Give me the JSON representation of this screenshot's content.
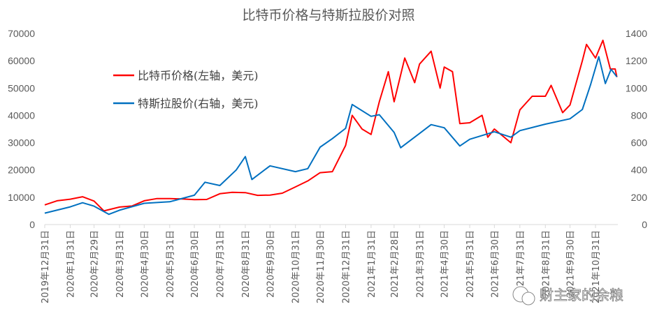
{
  "chart_data": {
    "type": "line",
    "title": "比特币价格与特斯拉股价对照",
    "y_left": {
      "min": 0,
      "max": 70000,
      "ticks": [
        0,
        10000,
        20000,
        30000,
        40000,
        50000,
        60000,
        70000
      ]
    },
    "y_right": {
      "min": 0,
      "max": 1400,
      "ticks": [
        0,
        200,
        400,
        600,
        800,
        1000,
        1200,
        1400
      ]
    },
    "x_tick_labels": [
      "2019年12月31日",
      "2020年1月31日",
      "2020年2月29日",
      "2020年3月31日",
      "2020年4月30日",
      "2020年5月31日",
      "2020年6月30日",
      "2020年7月31日",
      "2020年8月31日",
      "2020年9月30日",
      "2020年10月31日",
      "2020年11月30日",
      "2020年12月31日",
      "2021年1月31日",
      "2021年2月28日",
      "2021年3月31日",
      "2021年4月30日",
      "2021年5月31日",
      "2021年6月30日",
      "2021年7月31日",
      "2021年8月31日",
      "2021年9月30日",
      "2021年10月31日"
    ],
    "x_tick_dates": [
      "2019-12-31",
      "2020-01-31",
      "2020-02-29",
      "2020-03-31",
      "2020-04-30",
      "2020-05-31",
      "2020-06-30",
      "2020-07-31",
      "2020-08-31",
      "2020-09-30",
      "2020-10-31",
      "2020-11-30",
      "2020-12-31",
      "2021-01-31",
      "2021-02-28",
      "2021-03-31",
      "2021-04-30",
      "2021-05-31",
      "2021-06-30",
      "2021-07-31",
      "2021-08-31",
      "2021-09-30",
      "2021-10-31"
    ],
    "legend_position": "upper-left inside",
    "grid": false,
    "series": [
      {
        "name": "比特币价格(左轴，美元)",
        "axis": "left",
        "color": "#ff0000",
        "points": [
          [
            "2019-12-31",
            7200
          ],
          [
            "2020-01-15",
            8700
          ],
          [
            "2020-01-31",
            9300
          ],
          [
            "2020-02-15",
            10200
          ],
          [
            "2020-02-29",
            8600
          ],
          [
            "2020-03-12",
            5000
          ],
          [
            "2020-03-31",
            6400
          ],
          [
            "2020-04-15",
            6800
          ],
          [
            "2020-04-30",
            8700
          ],
          [
            "2020-05-15",
            9500
          ],
          [
            "2020-05-31",
            9500
          ],
          [
            "2020-06-15",
            9400
          ],
          [
            "2020-06-30",
            9150
          ],
          [
            "2020-07-15",
            9200
          ],
          [
            "2020-07-31",
            11300
          ],
          [
            "2020-08-15",
            11800
          ],
          [
            "2020-08-31",
            11700
          ],
          [
            "2020-09-15",
            10700
          ],
          [
            "2020-09-30",
            10800
          ],
          [
            "2020-10-15",
            11500
          ],
          [
            "2020-10-31",
            13800
          ],
          [
            "2020-11-15",
            16000
          ],
          [
            "2020-11-30",
            19000
          ],
          [
            "2020-12-15",
            19400
          ],
          [
            "2020-12-31",
            29000
          ],
          [
            "2021-01-08",
            40000
          ],
          [
            "2021-01-20",
            35000
          ],
          [
            "2021-01-31",
            33000
          ],
          [
            "2021-02-10",
            45000
          ],
          [
            "2021-02-21",
            56000
          ],
          [
            "2021-02-28",
            45000
          ],
          [
            "2021-03-13",
            61000
          ],
          [
            "2021-03-25",
            52000
          ],
          [
            "2021-03-31",
            58800
          ],
          [
            "2021-04-14",
            63500
          ],
          [
            "2021-04-25",
            50000
          ],
          [
            "2021-04-30",
            57700
          ],
          [
            "2021-05-10",
            56000
          ],
          [
            "2021-05-19",
            37000
          ],
          [
            "2021-05-31",
            37300
          ],
          [
            "2021-06-15",
            40000
          ],
          [
            "2021-06-22",
            32000
          ],
          [
            "2021-06-30",
            35000
          ],
          [
            "2021-07-20",
            30000
          ],
          [
            "2021-07-31",
            42000
          ],
          [
            "2021-08-15",
            47000
          ],
          [
            "2021-08-31",
            47000
          ],
          [
            "2021-09-07",
            51000
          ],
          [
            "2021-09-21",
            41000
          ],
          [
            "2021-09-30",
            43800
          ],
          [
            "2021-10-15",
            60000
          ],
          [
            "2021-10-20",
            66000
          ],
          [
            "2021-10-31",
            61000
          ],
          [
            "2021-11-09",
            67500
          ],
          [
            "2021-11-18",
            57000
          ],
          [
            "2021-11-24",
            57000
          ],
          [
            "2021-11-26",
            54000
          ]
        ]
      },
      {
        "name": "特斯拉股价(右轴，美元)",
        "axis": "right",
        "color": "#0070c0",
        "points": [
          [
            "2019-12-31",
            84
          ],
          [
            "2020-01-31",
            130
          ],
          [
            "2020-02-15",
            160
          ],
          [
            "2020-02-29",
            135
          ],
          [
            "2020-03-18",
            75
          ],
          [
            "2020-03-31",
            105
          ],
          [
            "2020-04-30",
            156
          ],
          [
            "2020-05-31",
            167
          ],
          [
            "2020-06-30",
            215
          ],
          [
            "2020-07-13",
            310
          ],
          [
            "2020-07-31",
            286
          ],
          [
            "2020-08-20",
            400
          ],
          [
            "2020-08-31",
            498
          ],
          [
            "2020-09-08",
            330
          ],
          [
            "2020-09-30",
            430
          ],
          [
            "2020-10-31",
            388
          ],
          [
            "2020-11-15",
            410
          ],
          [
            "2020-11-30",
            567
          ],
          [
            "2020-12-15",
            630
          ],
          [
            "2020-12-31",
            705
          ],
          [
            "2021-01-08",
            880
          ],
          [
            "2021-01-31",
            793
          ],
          [
            "2021-02-10",
            805
          ],
          [
            "2021-02-28",
            675
          ],
          [
            "2021-03-08",
            563
          ],
          [
            "2021-03-31",
            668
          ],
          [
            "2021-04-14",
            732
          ],
          [
            "2021-04-30",
            709
          ],
          [
            "2021-05-19",
            576
          ],
          [
            "2021-05-31",
            625
          ],
          [
            "2021-06-30",
            680
          ],
          [
            "2021-07-20",
            640
          ],
          [
            "2021-07-31",
            688
          ],
          [
            "2021-08-31",
            736
          ],
          [
            "2021-09-30",
            775
          ],
          [
            "2021-10-15",
            843
          ],
          [
            "2021-10-25",
            1024
          ],
          [
            "2021-11-04",
            1230
          ],
          [
            "2021-11-12",
            1033
          ],
          [
            "2021-11-19",
            1138
          ],
          [
            "2021-11-26",
            1082
          ]
        ]
      }
    ]
  },
  "watermark": "财主家的余粮"
}
